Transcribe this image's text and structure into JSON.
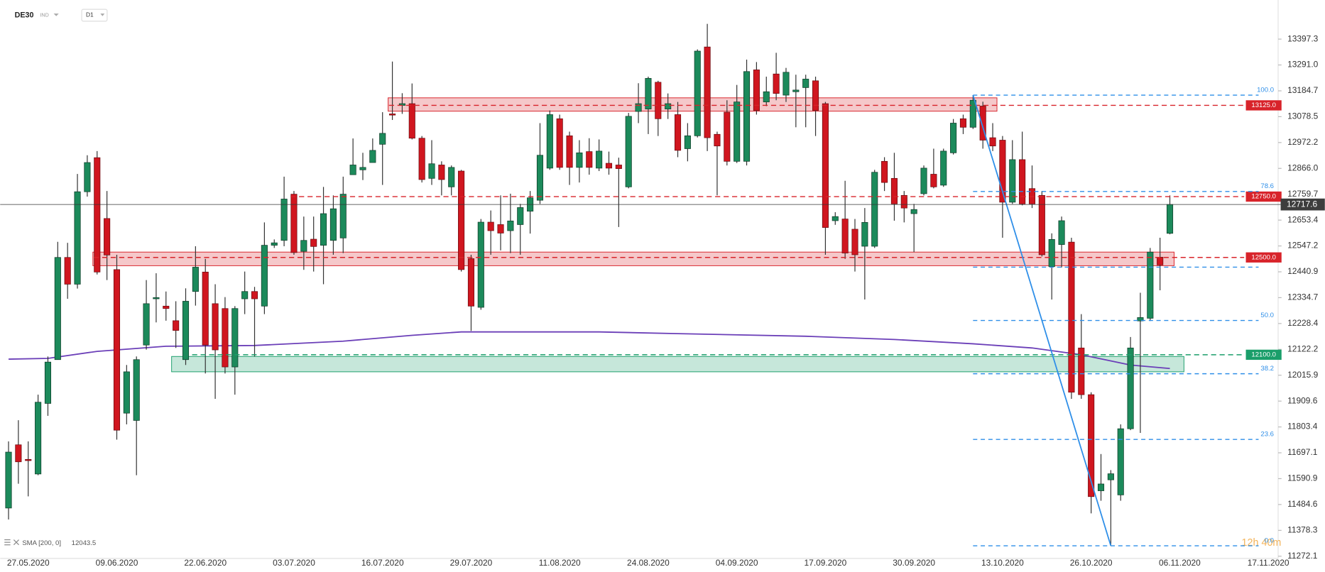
{
  "chart_data": {
    "type": "candlestick",
    "symbol": "DE30",
    "market": "IND",
    "timeframe": "D1",
    "countdown": "12h 40m",
    "colors": {
      "up": "#1c8a5b",
      "down": "#d0161f"
    },
    "categories": [
      null,
      null,
      "27.05.2020",
      null,
      null,
      null,
      null,
      null,
      null,
      null,
      null,
      "09.06.2020",
      null,
      null,
      null,
      null,
      null,
      null,
      null,
      null,
      "22.06.2020",
      null,
      null,
      null,
      null,
      null,
      null,
      null,
      null,
      "03.07.2020",
      null,
      null,
      null,
      null,
      null,
      null,
      null,
      null,
      "16.07.2020",
      null,
      null,
      null,
      null,
      null,
      null,
      null,
      null,
      "29.07.2020",
      null,
      null,
      null,
      null,
      null,
      null,
      null,
      null,
      "11.08.2020",
      null,
      null,
      null,
      null,
      null,
      null,
      null,
      null,
      "24.08.2020",
      null,
      null,
      null,
      null,
      null,
      null,
      null,
      null,
      "04.09.2020",
      null,
      null,
      null,
      null,
      null,
      null,
      null,
      null,
      "17.09.2020",
      null,
      null,
      null,
      null,
      null,
      null,
      null,
      null,
      "30.09.2020",
      null,
      null,
      null,
      null,
      null,
      null,
      null,
      null,
      "13.10.2020",
      null,
      null,
      null,
      null,
      null,
      null,
      null,
      null,
      "26.10.2020",
      null,
      null,
      null,
      null,
      null,
      null,
      null,
      null,
      "06.11.2020",
      null,
      null,
      null,
      null,
      null,
      null,
      null,
      null,
      "17.11.2020"
    ],
    "open": [
      11470,
      11730,
      11670,
      11610,
      11900,
      12080,
      12500,
      12390,
      12770,
      12910,
      12660,
      12450,
      11860,
      11830,
      12140,
      12330,
      12300,
      12240,
      12080,
      12360,
      12440,
      12310,
      12290,
      12050,
      12330,
      12360,
      12300,
      12550,
      12570,
      12760,
      12525,
      12575,
      12550,
      12570,
      12580,
      12840,
      12860,
      12890,
      12965,
      13090,
      13125,
      13132,
      12990,
      12825,
      12880,
      12790,
      12855,
      12495,
      12295,
      12645,
      12635,
      12610,
      12635,
      12690,
      12735,
      12867,
      13070,
      13000,
      12870,
      12935,
      12867,
      12887,
      12880,
      12790,
      13100,
      13110,
      13220,
      13110,
      13087,
      12947,
      13000,
      13365,
      13006,
      13097,
      12895,
      12895,
      13271,
      13139,
      13254,
      13167,
      13181,
      13198,
      13226,
      13132,
      12651,
      12658,
      12616,
      12546,
      12546,
      12895,
      12825,
      12755,
      12680,
      12762,
      12842,
      12797,
      12930,
      13070,
      13035,
      13122,
      12992,
      12982,
      12727,
      12902,
      12783,
      12755,
      12462,
      12553,
      12563,
      12128,
      11936,
      11541,
      11586,
      11524,
      11796,
      12239,
      12250,
      12501,
      12599,
      null,
      null,
      null,
      null,
      null,
      null,
      null,
      null,
      null,
      null
    ],
    "high": [
      11744,
      11831,
      11744,
      11936,
      12093,
      12564,
      12560,
      12843,
      12920,
      12937,
      12773,
      12511,
      12058,
      12093,
      12407,
      12435,
      12360,
      12320,
      12373,
      12546,
      12494,
      12390,
      12337,
      12300,
      12442,
      12379,
      12644,
      12574,
      12832,
      12773,
      12668,
      12668,
      12790,
      12755,
      12832,
      12989,
      12930,
      12989,
      13097,
      13305,
      13175,
      13215,
      12999,
      12982,
      12895,
      12878,
      12860,
      12511,
      12658,
      12693,
      12755,
      12762,
      12720,
      12773,
      13052,
      13104,
      13087,
      13017,
      12982,
      12990,
      12985,
      12935,
      12910,
      13094,
      13216,
      13243,
      13226,
      13174,
      13139,
      13052,
      13355,
      13460,
      13017,
      13146,
      13209,
      13313,
      13303,
      13243,
      13341,
      13279,
      13251,
      13251,
      13243,
      13139,
      12686,
      12815,
      12658,
      12703,
      12860,
      12912,
      12930,
      12773,
      12720,
      12878,
      12947,
      12947,
      13069,
      13087,
      13167,
      13140,
      13052,
      12999,
      12982,
      13017,
      12878,
      12773,
      12599,
      12668,
      12581,
      12267,
      11946,
      11692,
      11626,
      11814,
      12173,
      12355,
      12539,
      12581,
      12755,
      null,
      null,
      null,
      null,
      null,
      null,
      null,
      null,
      null,
      null
    ],
    "low": [
      11423,
      11570,
      11518,
      11605,
      11849,
      12093,
      12330,
      12372,
      12750,
      12430,
      12407,
      11751,
      11814,
      11605,
      12121,
      12233,
      12240,
      12128,
      12058,
      12302,
      12023,
      11919,
      12023,
      11936,
      12267,
      12093,
      12267,
      12539,
      12546,
      12511,
      12449,
      12442,
      12390,
      12511,
      12518,
      12843,
      12818,
      12895,
      12798,
      13065,
      13090,
      12985,
      12808,
      12798,
      12755,
      12755,
      12442,
      12198,
      12285,
      12511,
      12529,
      12518,
      12511,
      12598,
      12720,
      12860,
      12860,
      12798,
      12808,
      12840,
      12855,
      12840,
      12625,
      12784,
      13052,
      13007,
      12999,
      13069,
      12912,
      12895,
      12993,
      12937,
      12755,
      12878,
      12888,
      12878,
      13087,
      13122,
      13146,
      13139,
      13035,
      13035,
      12999,
      12511,
      12634,
      12494,
      12442,
      12327,
      12539,
      12773,
      12651,
      12644,
      12522,
      12755,
      12784,
      12790,
      12923,
      13007,
      13028,
      12947,
      12937,
      12581,
      12720,
      12714,
      12703,
      12504,
      12327,
      12459,
      11919,
      11919,
      11448,
      11500,
      11315,
      11500,
      11790,
      11779,
      12239,
      12365,
      12595,
      null,
      null,
      null,
      null,
      null,
      null,
      null,
      null,
      null,
      null
    ],
    "close": [
      11700,
      11660,
      11665,
      11905,
      12070,
      12500,
      12390,
      12770,
      12890,
      12440,
      12510,
      11790,
      12030,
      12080,
      12310,
      12335,
      12290,
      12200,
      12320,
      12460,
      12140,
      12120,
      12050,
      12290,
      12360,
      12330,
      12550,
      12560,
      12740,
      12520,
      12570,
      12545,
      12680,
      12700,
      12760,
      12880,
      12870,
      12940,
      13010,
      13085,
      13132,
      12990,
      12820,
      12885,
      12820,
      12870,
      12450,
      12300,
      12645,
      12610,
      12600,
      12650,
      12705,
      12745,
      12920,
      13087,
      12870,
      12870,
      12930,
      12870,
      12937,
      12867,
      12865,
      13080,
      13132,
      13236,
      13070,
      13132,
      12940,
      13000,
      13348,
      12992,
      12958,
      12895,
      13139,
      13264,
      13104,
      13181,
      13174,
      13261,
      13188,
      13233,
      13104,
      12623,
      12668,
      12518,
      12511,
      12644,
      12850,
      12808,
      12720,
      12703,
      12697,
      12867,
      12790,
      12937,
      13052,
      13035,
      13146,
      12982,
      12958,
      12727,
      12902,
      12720,
      12720,
      12511,
      12574,
      12651,
      11946,
      11936,
      11517,
      11569,
      11611,
      11796,
      12128,
      12253,
      12522,
      12469,
      12717.6,
      null,
      null,
      null,
      null,
      null,
      null,
      null,
      null,
      null,
      null
    ],
    "sma": {
      "name": "SMA [200, 0]",
      "color": "#6b3fb8",
      "x": [
        0,
        4,
        9,
        16,
        25,
        34,
        41,
        46,
        60,
        68,
        81,
        90,
        98,
        104,
        109,
        114,
        118
      ],
      "values": [
        12082,
        12085,
        12114,
        12135,
        12138,
        12156,
        12180,
        12194,
        12194,
        12187,
        12176,
        12163,
        12145,
        12128,
        12100,
        12058,
        12043.5
      ]
    },
    "levels": [
      {
        "value": 13125,
        "label": "13125.0",
        "color": "#d8232a",
        "from": 39,
        "zone": [
          13101,
          13156
        ],
        "zone_x": [
          39,
          100
        ]
      },
      {
        "value": 12750,
        "label": "12750.0",
        "color": "#d8232a",
        "from": 29
      },
      {
        "value": 12500,
        "label": "12500.0",
        "color": "#d8232a",
        "from": 9,
        "zone": [
          12466,
          12522
        ],
        "zone_x": [
          9,
          118
        ]
      },
      {
        "value": 12100,
        "label": "12100.0",
        "color": "#1a9e6a",
        "from": 19,
        "zone": [
          12030,
          12093
        ],
        "zone_x": [
          17,
          119
        ]
      }
    ],
    "fib": {
      "color": "#2f8fe8",
      "x": [
        98,
        112
      ],
      "levels": [
        {
          "value": 13167,
          "label": "100.0"
        },
        {
          "value": 12771,
          "label": "78.6"
        },
        {
          "value": 12460
        },
        {
          "value": 12241,
          "label": "50.0"
        },
        {
          "value": 12022,
          "label": "38.2"
        },
        {
          "value": 11752,
          "label": "23.6"
        },
        {
          "value": 11315,
          "label": "0.0"
        }
      ]
    },
    "xlim": [
      -0.85,
      129
    ],
    "ylim": [
      11263,
      13558
    ],
    "yticks": [
      13397.3,
      {
        "value": 13291,
        "label": "13291.0"
      },
      13184.7,
      13078.5,
      12972.2,
      {
        "value": 12866,
        "label": "12866.0"
      },
      12759.7,
      12653.4,
      12547.2,
      12440.9,
      12334.7,
      12228.4,
      12122.2,
      12015.9,
      11909.6,
      11803.4,
      11697.1,
      11590.9,
      11484.6,
      11378.3,
      11272.1
    ]
  }
}
